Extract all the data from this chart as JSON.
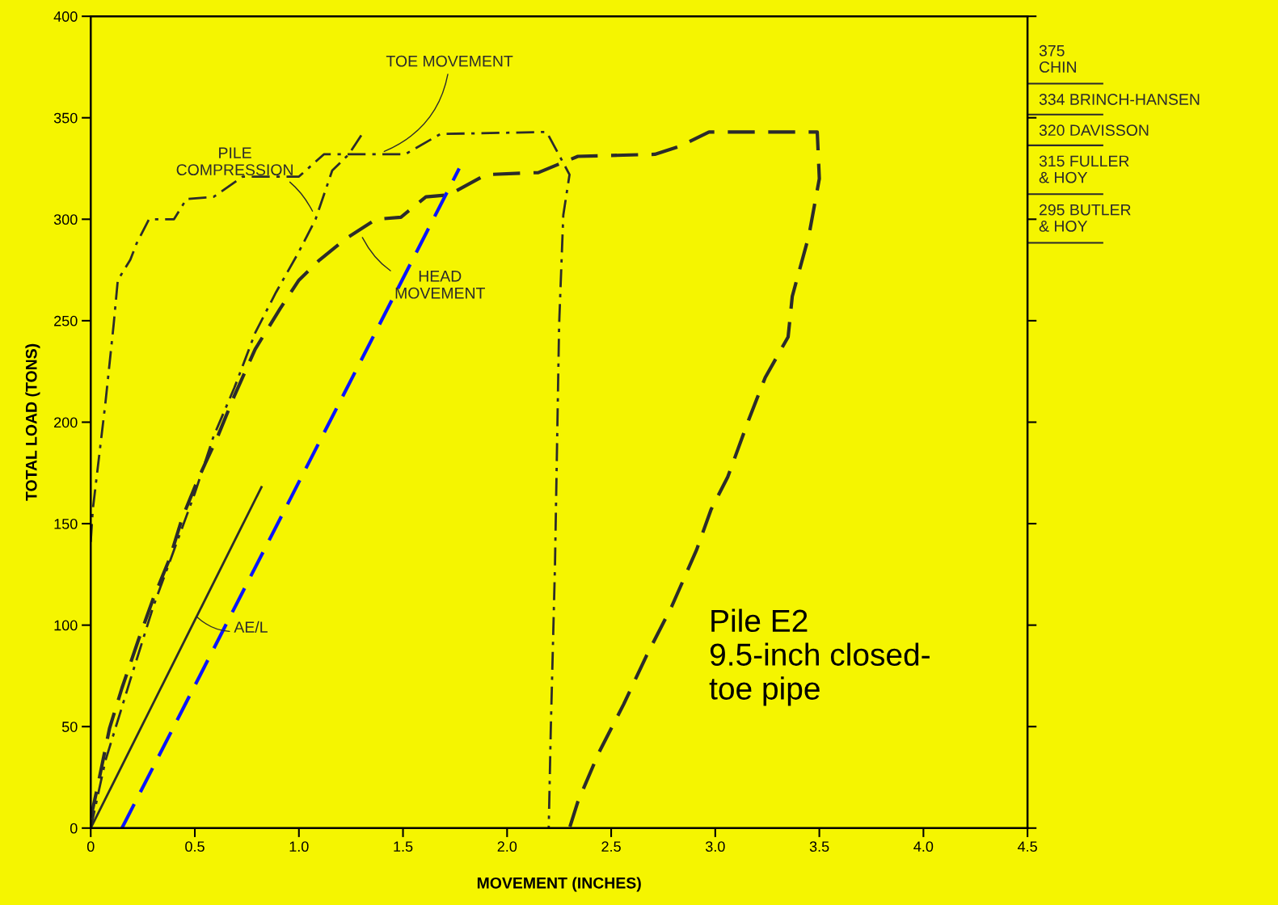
{
  "chart_data": {
    "type": "line",
    "xlabel": "MOVEMENT (INCHES)",
    "ylabel": "TOTAL LOAD (TONS)",
    "xlim": [
      0,
      4.5
    ],
    "ylim": [
      0,
      400
    ],
    "xticks": [
      0,
      0.5,
      {
        "value": 1,
        "label": "1.0"
      },
      1.5,
      {
        "value": 2,
        "label": "2.0"
      },
      2.5,
      {
        "value": 3,
        "label": "3.0"
      },
      3.5,
      {
        "value": 4,
        "label": "4.0"
      },
      4.5
    ],
    "yticks": [
      0,
      50,
      100,
      150,
      200,
      250,
      300,
      350,
      400
    ],
    "grid": false,
    "legend": false,
    "marker": "none",
    "series": [
      {
        "color": "#2b2b2b",
        "line_style": "dashed",
        "x": [
          0,
          0.03,
          0.09,
          0.15,
          0.23,
          0.3,
          0.38,
          0.44,
          0.52,
          0.61,
          0.69,
          0.79,
          0.91,
          1.0,
          1.1,
          1.22,
          1.37,
          1.49,
          1.61,
          1.72,
          1.9,
          2.15,
          2.34,
          2.71,
          2.83,
          2.97,
          3.49,
          3.5,
          3.45,
          3.37,
          3.35,
          3.24,
          3.16,
          3.06,
          2.98,
          2.91,
          2.79,
          2.67,
          2.56,
          2.44,
          2.34,
          2.3
        ],
        "values": [
          5,
          19,
          49,
          69,
          93,
          113,
          133,
          153,
          173,
          193,
          213,
          236,
          256,
          270,
          280,
          290,
          300,
          301,
          311,
          312,
          322,
          323,
          331,
          332,
          336,
          343,
          343,
          320,
          292,
          262,
          242,
          222,
          201,
          173,
          157,
          137,
          109,
          85,
          61,
          37,
          13,
          0
        ]
      },
      {
        "color": "#2b2b2b",
        "line_style": "dashdot",
        "x": [
          0,
          0.07,
          0.19,
          0.3,
          0.4,
          0.5,
          0.59,
          0.69,
          0.79,
          0.89,
          1.0,
          1.08,
          1.16,
          1.24,
          1.31
        ],
        "values": [
          0,
          33,
          73,
          109,
          137,
          165,
          193,
          217,
          244,
          264,
          284,
          300,
          324,
          332,
          343
        ]
      },
      {
        "color": "#2b2b2b",
        "line_style": "dashdot",
        "x": [
          0,
          0.01,
          0.07,
          0.11,
          0.13,
          0.19,
          0.22,
          0.28,
          0.4,
          0.46,
          0.59,
          0.73,
          1.0,
          1.12,
          1.51,
          1.68,
          2.19,
          2.3,
          2.27,
          2.25,
          2.23,
          2.21,
          2.2
        ],
        "values": [
          141,
          157,
          209,
          248,
          270,
          280,
          288,
          300,
          300,
          310,
          311,
          321,
          321,
          332,
          332,
          342,
          343,
          322,
          302,
          248,
          129,
          49,
          0
        ]
      },
      {
        "color": "#2b2b2b",
        "line_style": "solid",
        "x": [
          0,
          0.82
        ],
        "values": [
          0,
          168
        ]
      },
      {
        "color": "#0a14ff",
        "line_style": "dashed",
        "x": [
          0.15,
          1.77
        ],
        "values": [
          0,
          325
        ]
      }
    ],
    "annotations": [
      {
        "text": "PILE\nCOMPRESSION",
        "x": 1.07,
        "y": 303
      },
      {
        "text": "TOE MOVEMENT",
        "x": 1.4,
        "y": 333
      },
      {
        "text": "HEAD\nMOVEMENT",
        "x": 1.3,
        "y": 292
      },
      {
        "text": "AE/L",
        "x": 0.5,
        "y": 105
      },
      "375\nCHIN",
      "334 BRINCH-HANSEN",
      "320 DAVISSON",
      "315 FULLER\n& HOY",
      "295 BUTLER\n& HOY",
      "Pile E2\n9.5-inch closed-\ntoe pipe"
    ]
  }
}
